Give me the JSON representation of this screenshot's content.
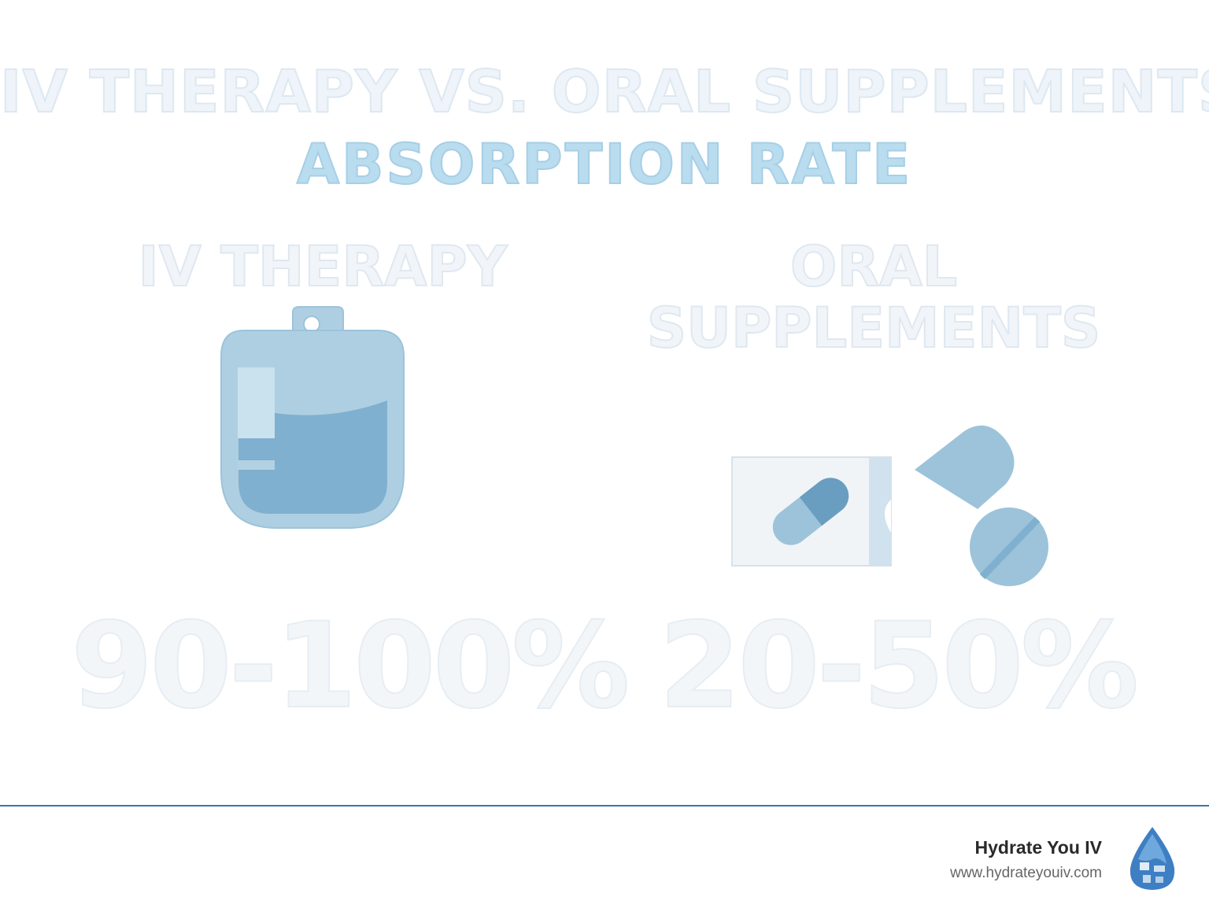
{
  "header": {
    "title_line1": "IV THERAPY VS. ORAL SUPPLEMENTS",
    "title_line2": "ABSORPTION RATE"
  },
  "columns": [
    {
      "heading": "IV THERAPY",
      "icon": "iv-bag-icon",
      "rate": "90-100%"
    },
    {
      "heading_line1": "ORAL",
      "heading_line2": "SUPPLEMENTS",
      "icon": "pills-icon",
      "rate": "20-50%"
    }
  ],
  "footer": {
    "brand_name": "Hydrate You IV",
    "url": "www.hydrateyouiv.com",
    "logo_icon": "water-drop-logo-icon"
  },
  "colors": {
    "accent_blue": "#3f74a8",
    "title_blue": "#b9dcef",
    "icon_light": "#a9cce0",
    "icon_mid": "#7fb0cf",
    "icon_dark": "#6a9ec0"
  }
}
